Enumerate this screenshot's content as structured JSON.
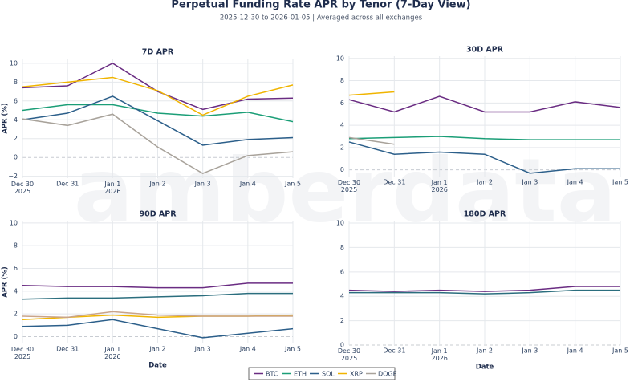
{
  "title": "Perpetual Funding Rate APR by Tenor (7-Day View)",
  "subtitle": "2025-12-30 to 2026-01-05 | Averaged across all exchanges",
  "watermark": "amberdata",
  "chart_data": [
    {
      "type": "line",
      "title": "7D APR",
      "y_label": "APR (%)",
      "categories": [
        "Dec 30\n2025",
        "Dec 31",
        "Jan 1\n2026",
        "Jan 2",
        "Jan 3",
        "Jan 4",
        "Jan 5"
      ],
      "ylim": [
        -2.2,
        10.5
      ],
      "yticks": [
        {
          "value": -2,
          "label": "−2"
        },
        0,
        2,
        4,
        6,
        8,
        10
      ],
      "grid": true,
      "series": [
        {
          "name": "BTC",
          "color": "#6a2c82",
          "values": [
            7.4,
            7.6,
            10,
            7.0,
            5.1,
            6.2,
            6.3
          ]
        },
        {
          "name": "ETH",
          "color": "#1b9e77",
          "values": [
            5.0,
            5.6,
            5.6,
            4.7,
            4.4,
            4.8,
            3.8
          ]
        },
        {
          "name": "SOL",
          "color": "#2c5f8a",
          "values": [
            4.0,
            4.7,
            6.5,
            3.9,
            1.3,
            1.9,
            2.1
          ]
        },
        {
          "name": "XRP",
          "color": "#f0b400",
          "values": [
            7.5,
            8.0,
            8.5,
            7.1,
            4.5,
            6.5,
            7.7
          ]
        },
        {
          "name": "DOGE",
          "color": "#a8a29a",
          "values": [
            4.1,
            3.4,
            4.6,
            1.1,
            -1.7,
            0.2,
            0.6
          ]
        }
      ]
    },
    {
      "type": "line",
      "title": "30D APR",
      "categories": [
        "Dec 30\n2025",
        "Dec 31",
        "Jan 1\n2026",
        "Jan 2",
        "Jan 3",
        "Jan 4",
        "Jan 5"
      ],
      "ylim": [
        -0.6,
        10.2
      ],
      "yticks": [
        0,
        2,
        4,
        6,
        8,
        10
      ],
      "grid": true,
      "series": [
        {
          "name": "BTC",
          "color": "#6a2c82",
          "values": [
            6.3,
            5.2,
            6.6,
            5.2,
            5.2,
            6.1,
            5.6
          ]
        },
        {
          "name": "ETH",
          "color": "#1b9e77",
          "values": [
            2.8,
            2.9,
            3.0,
            2.8,
            2.7,
            2.7,
            2.7
          ]
        },
        {
          "name": "SOL",
          "color": "#2c5f8a",
          "values": [
            2.5,
            1.4,
            1.6,
            1.4,
            -0.3,
            0.1,
            0.1
          ]
        },
        {
          "name": "XRP",
          "color": "#f0b400",
          "values": [
            6.7,
            7.0,
            null,
            null,
            null,
            null,
            null
          ]
        },
        {
          "name": "DOGE",
          "color": "#a8a29a",
          "values": [
            2.9,
            2.3,
            null,
            null,
            null,
            null,
            null
          ]
        }
      ]
    },
    {
      "type": "line",
      "title": "90D APR",
      "y_label": "APR (%)",
      "x_label": "Date",
      "categories": [
        "Dec 30\n2025",
        "Dec 31",
        "Jan 1\n2026",
        "Jan 2",
        "Jan 3",
        "Jan 4",
        "Jan 5"
      ],
      "ylim": [
        -0.6,
        10.2
      ],
      "yticks": [
        0,
        2,
        4,
        6,
        8,
        10
      ],
      "grid": true,
      "series": [
        {
          "name": "BTC",
          "color": "#6a2c82",
          "values": [
            4.5,
            4.4,
            4.4,
            4.3,
            4.3,
            4.7,
            4.7
          ]
        },
        {
          "name": "ETH",
          "color": "#2b6e7e",
          "values": [
            3.3,
            3.4,
            3.4,
            3.5,
            3.6,
            3.8,
            3.8
          ]
        },
        {
          "name": "SOL",
          "color": "#2c5f8a",
          "values": [
            0.9,
            1.0,
            1.5,
            0.7,
            -0.1,
            0.3,
            0.7
          ]
        },
        {
          "name": "XRP",
          "color": "#f0b400",
          "values": [
            1.5,
            1.7,
            1.9,
            1.7,
            1.8,
            1.8,
            1.9
          ]
        },
        {
          "name": "DOGE",
          "color": "#c9a48a",
          "values": [
            1.8,
            1.7,
            2.2,
            1.9,
            1.8,
            1.8,
            1.8
          ]
        }
      ]
    },
    {
      "type": "line",
      "title": "180D APR",
      "x_label": "Date",
      "categories": [
        "Dec 30\n2025",
        "Dec 31",
        "Jan 1\n2026",
        "Jan 2",
        "Jan 3",
        "Jan 4",
        "Jan 5"
      ],
      "ylim": [
        0,
        10.2
      ],
      "yticks": [
        0,
        2,
        4,
        6,
        8,
        10
      ],
      "grid": true,
      "series": [
        {
          "name": "BTC",
          "color": "#6a2c82",
          "values": [
            4.5,
            4.4,
            4.5,
            4.4,
            4.5,
            4.8,
            4.8
          ]
        },
        {
          "name": "ETH",
          "color": "#2b6e7e",
          "values": [
            4.3,
            4.3,
            4.3,
            4.2,
            4.3,
            4.5,
            4.5
          ]
        }
      ]
    }
  ]
}
